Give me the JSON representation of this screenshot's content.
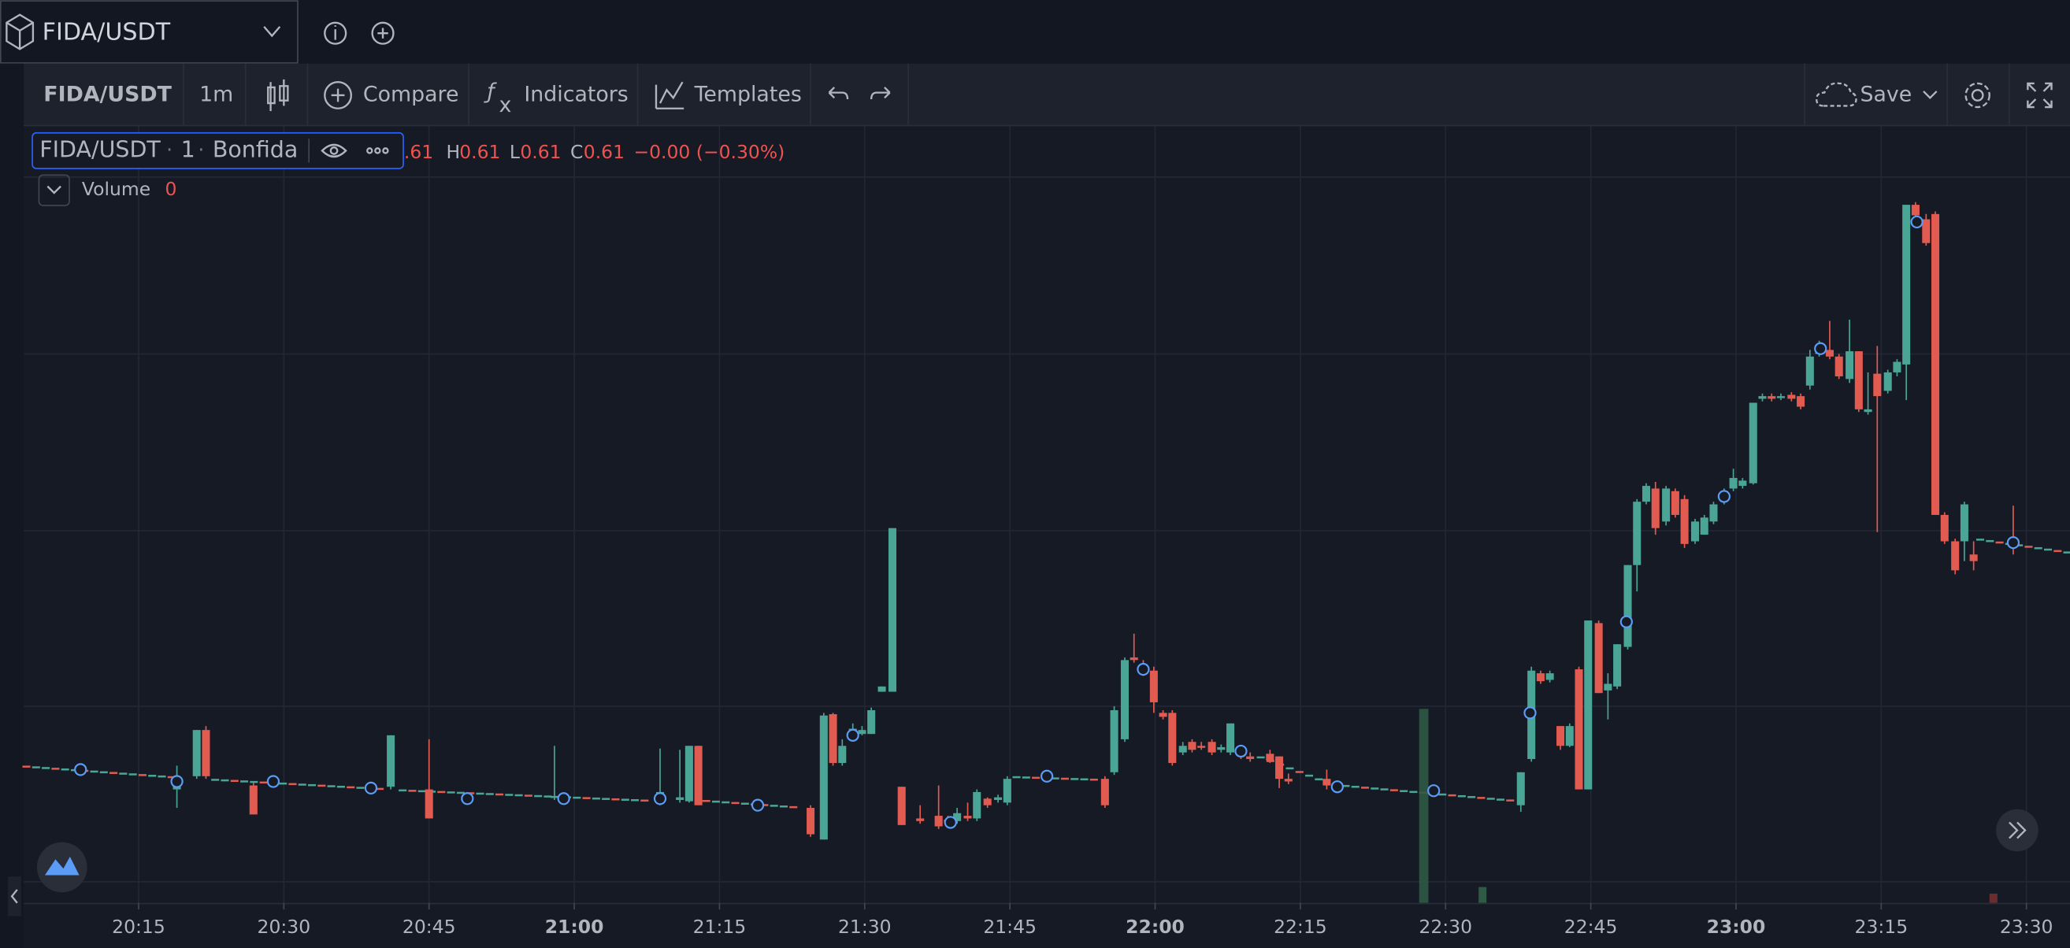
{
  "header": {
    "symbol": "FIDA/USDT"
  },
  "toolbar": {
    "symbol": "FIDA/USDT",
    "interval": "1m",
    "compare": "Compare",
    "indicators": "Indicators",
    "templates": "Templates",
    "save": "Save"
  },
  "legend": {
    "symbol": "FIDA/USDT",
    "separator": "·",
    "interval": "1",
    "exchange": "Bonfida",
    "open_fragment": ".61",
    "high_label": "H",
    "high": "0.61",
    "low_label": "L",
    "low": "0.61",
    "close_label": "C",
    "close": "0.61",
    "change": "−0.00 (−0.30%)"
  },
  "volume": {
    "label": "Volume",
    "value": "0"
  },
  "time_axis": [
    "20:15",
    "20:30",
    "20:45",
    "21:00",
    "21:15",
    "21:30",
    "21:45",
    "22:00",
    "22:15",
    "22:30",
    "22:45",
    "23:00",
    "23:15",
    "23:30"
  ]
}
